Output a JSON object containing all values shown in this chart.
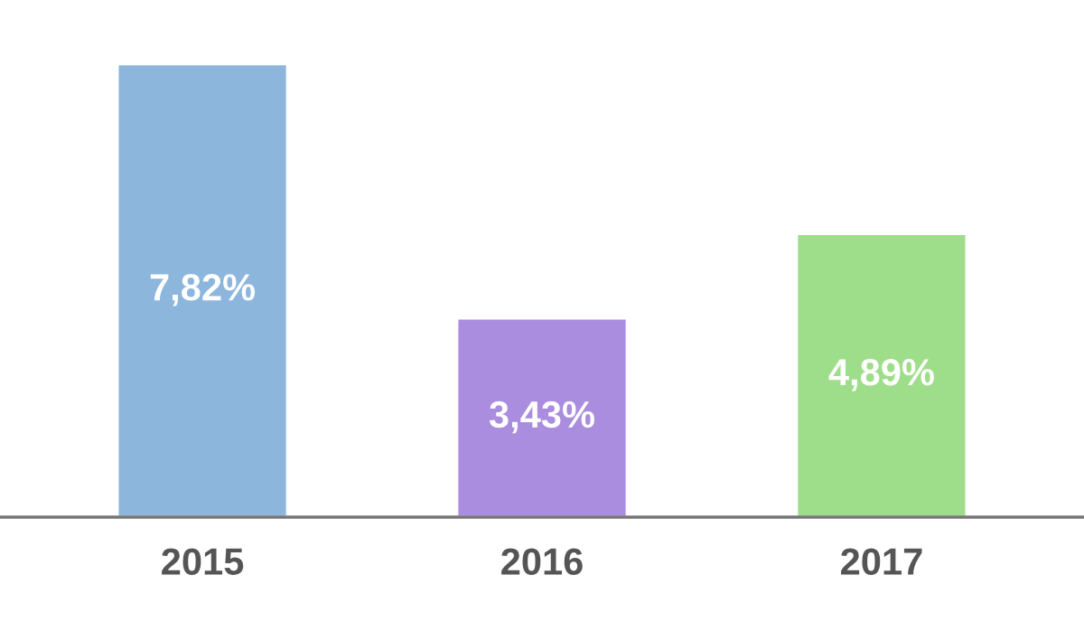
{
  "chart_data": {
    "type": "bar",
    "categories": [
      "2015",
      "2016",
      "2017"
    ],
    "values": [
      7.82,
      3.43,
      4.89
    ],
    "colors": [
      "#8db6dd",
      "#aa8ddf",
      "#9ede8a"
    ],
    "value_labels": [
      "7,82%",
      "3,43%",
      "4,89%"
    ],
    "grid": false,
    "legend": false
  }
}
